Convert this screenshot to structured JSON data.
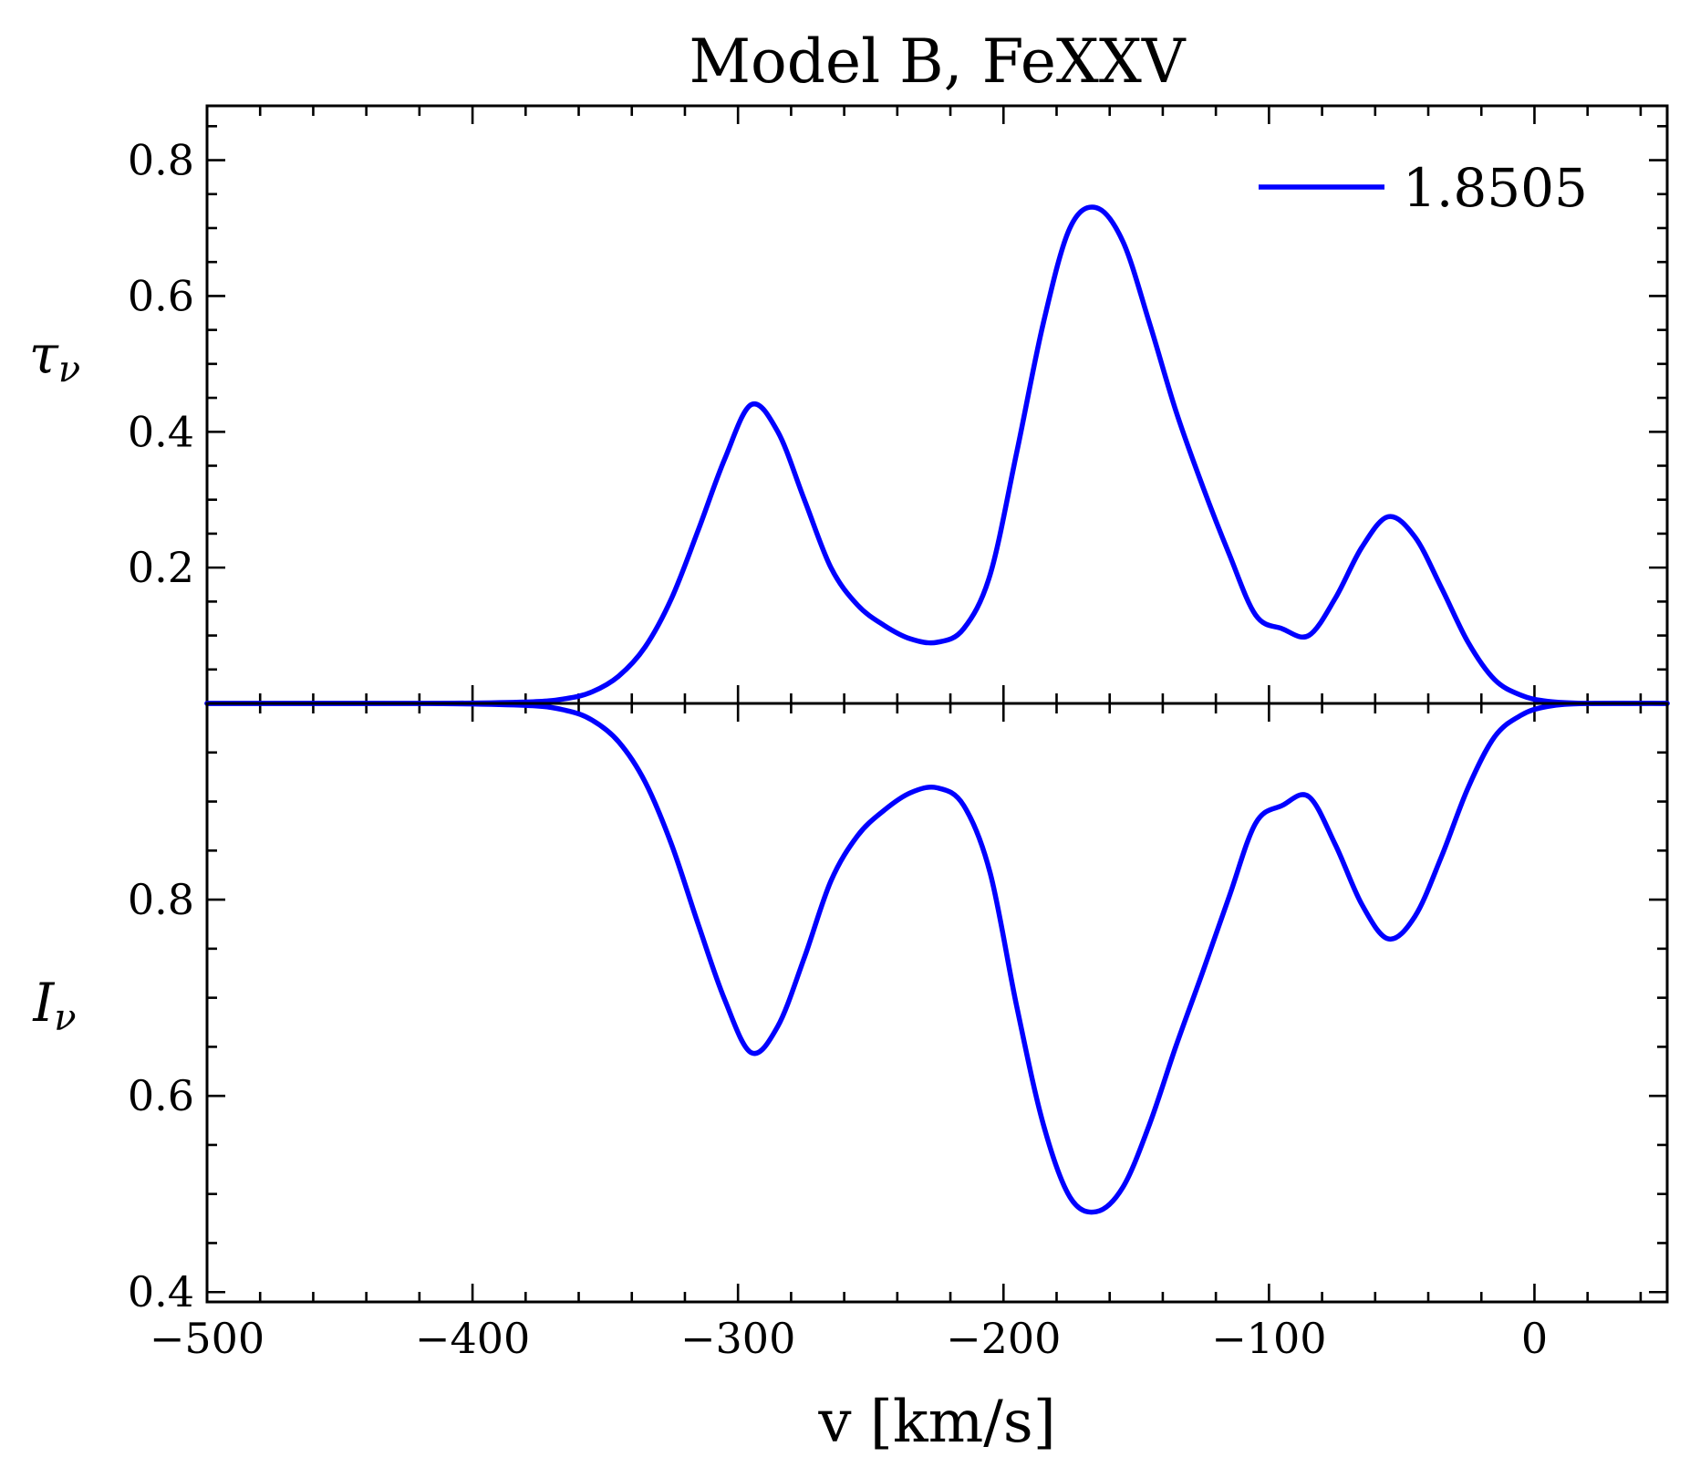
{
  "chart_data": {
    "title": "Model B, FeXXV",
    "xlabel": "v [km/s]",
    "xlim": [
      -500,
      50
    ],
    "x_ticks": [
      -500,
      -400,
      -300,
      -200,
      -100,
      0
    ],
    "x_tick_labels": [
      "−500",
      "−400",
      "−300",
      "−200",
      "−100",
      "0"
    ],
    "legend": {
      "label": "1.8505",
      "placement": "top-right"
    },
    "panels": [
      {
        "type": "line",
        "ylabel": "τ",
        "ylabel_sub": "ν",
        "ylim": [
          0.0,
          0.88
        ],
        "y_ticks": [
          0.2,
          0.4,
          0.6,
          0.8
        ],
        "y_tick_labels": [
          "0.2",
          "0.4",
          "0.6",
          "0.8"
        ],
        "series": [
          {
            "name": "1.8505",
            "color": "#0000ff",
            "x": [
              -500,
              -420,
              -380,
              -365,
              -355,
              -345,
              -335,
              -325,
              -315,
              -305,
              -295,
              -285,
              -275,
              -265,
              -255,
              -245,
              -235,
              -225,
              -215,
              -205,
              -195,
              -185,
              -175,
              -165,
              -155,
              -145,
              -135,
              -125,
              -115,
              -105,
              -95,
              -85,
              -75,
              -65,
              -55,
              -45,
              -35,
              -25,
              -15,
              -5,
              5,
              20,
              50
            ],
            "y": [
              0.0,
              0.0,
              0.002,
              0.007,
              0.017,
              0.04,
              0.083,
              0.155,
              0.255,
              0.36,
              0.44,
              0.4,
              0.3,
              0.2,
              0.145,
              0.115,
              0.095,
              0.09,
              0.11,
              0.19,
              0.37,
              0.56,
              0.7,
              0.73,
              0.68,
              0.56,
              0.43,
              0.32,
              0.22,
              0.13,
              0.11,
              0.1,
              0.155,
              0.23,
              0.275,
              0.245,
              0.17,
              0.09,
              0.035,
              0.012,
              0.003,
              0.0,
              0.0
            ]
          }
        ]
      },
      {
        "type": "line",
        "ylabel": "I",
        "ylabel_sub": "ν",
        "ylim": [
          0.39,
          1.0
        ],
        "y_ticks": [
          0.4,
          0.6,
          0.8
        ],
        "y_tick_labels": [
          "0.4",
          "0.6",
          "0.8"
        ],
        "series": [
          {
            "name": "1.8505",
            "color": "#0000ff",
            "x": [
              -500,
              -420,
              -380,
              -365,
              -355,
              -345,
              -335,
              -325,
              -315,
              -305,
              -295,
              -285,
              -275,
              -265,
              -255,
              -245,
              -235,
              -225,
              -215,
              -205,
              -195,
              -185,
              -175,
              -165,
              -155,
              -145,
              -135,
              -125,
              -115,
              -105,
              -95,
              -85,
              -75,
              -65,
              -55,
              -45,
              -35,
              -25,
              -15,
              -5,
              5,
              20,
              50
            ],
            "y": [
              1.0,
              1.0,
              0.998,
              0.993,
              0.983,
              0.961,
              0.92,
              0.856,
              0.775,
              0.698,
              0.644,
              0.671,
              0.741,
              0.819,
              0.865,
              0.891,
              0.909,
              0.914,
              0.896,
              0.827,
              0.691,
              0.571,
              0.497,
              0.482,
              0.507,
              0.571,
              0.651,
              0.726,
              0.803,
              0.878,
              0.896,
              0.905,
              0.856,
              0.795,
              0.76,
              0.783,
              0.844,
              0.914,
              0.966,
              0.988,
              0.997,
              1.0,
              1.0
            ]
          }
        ]
      }
    ]
  }
}
